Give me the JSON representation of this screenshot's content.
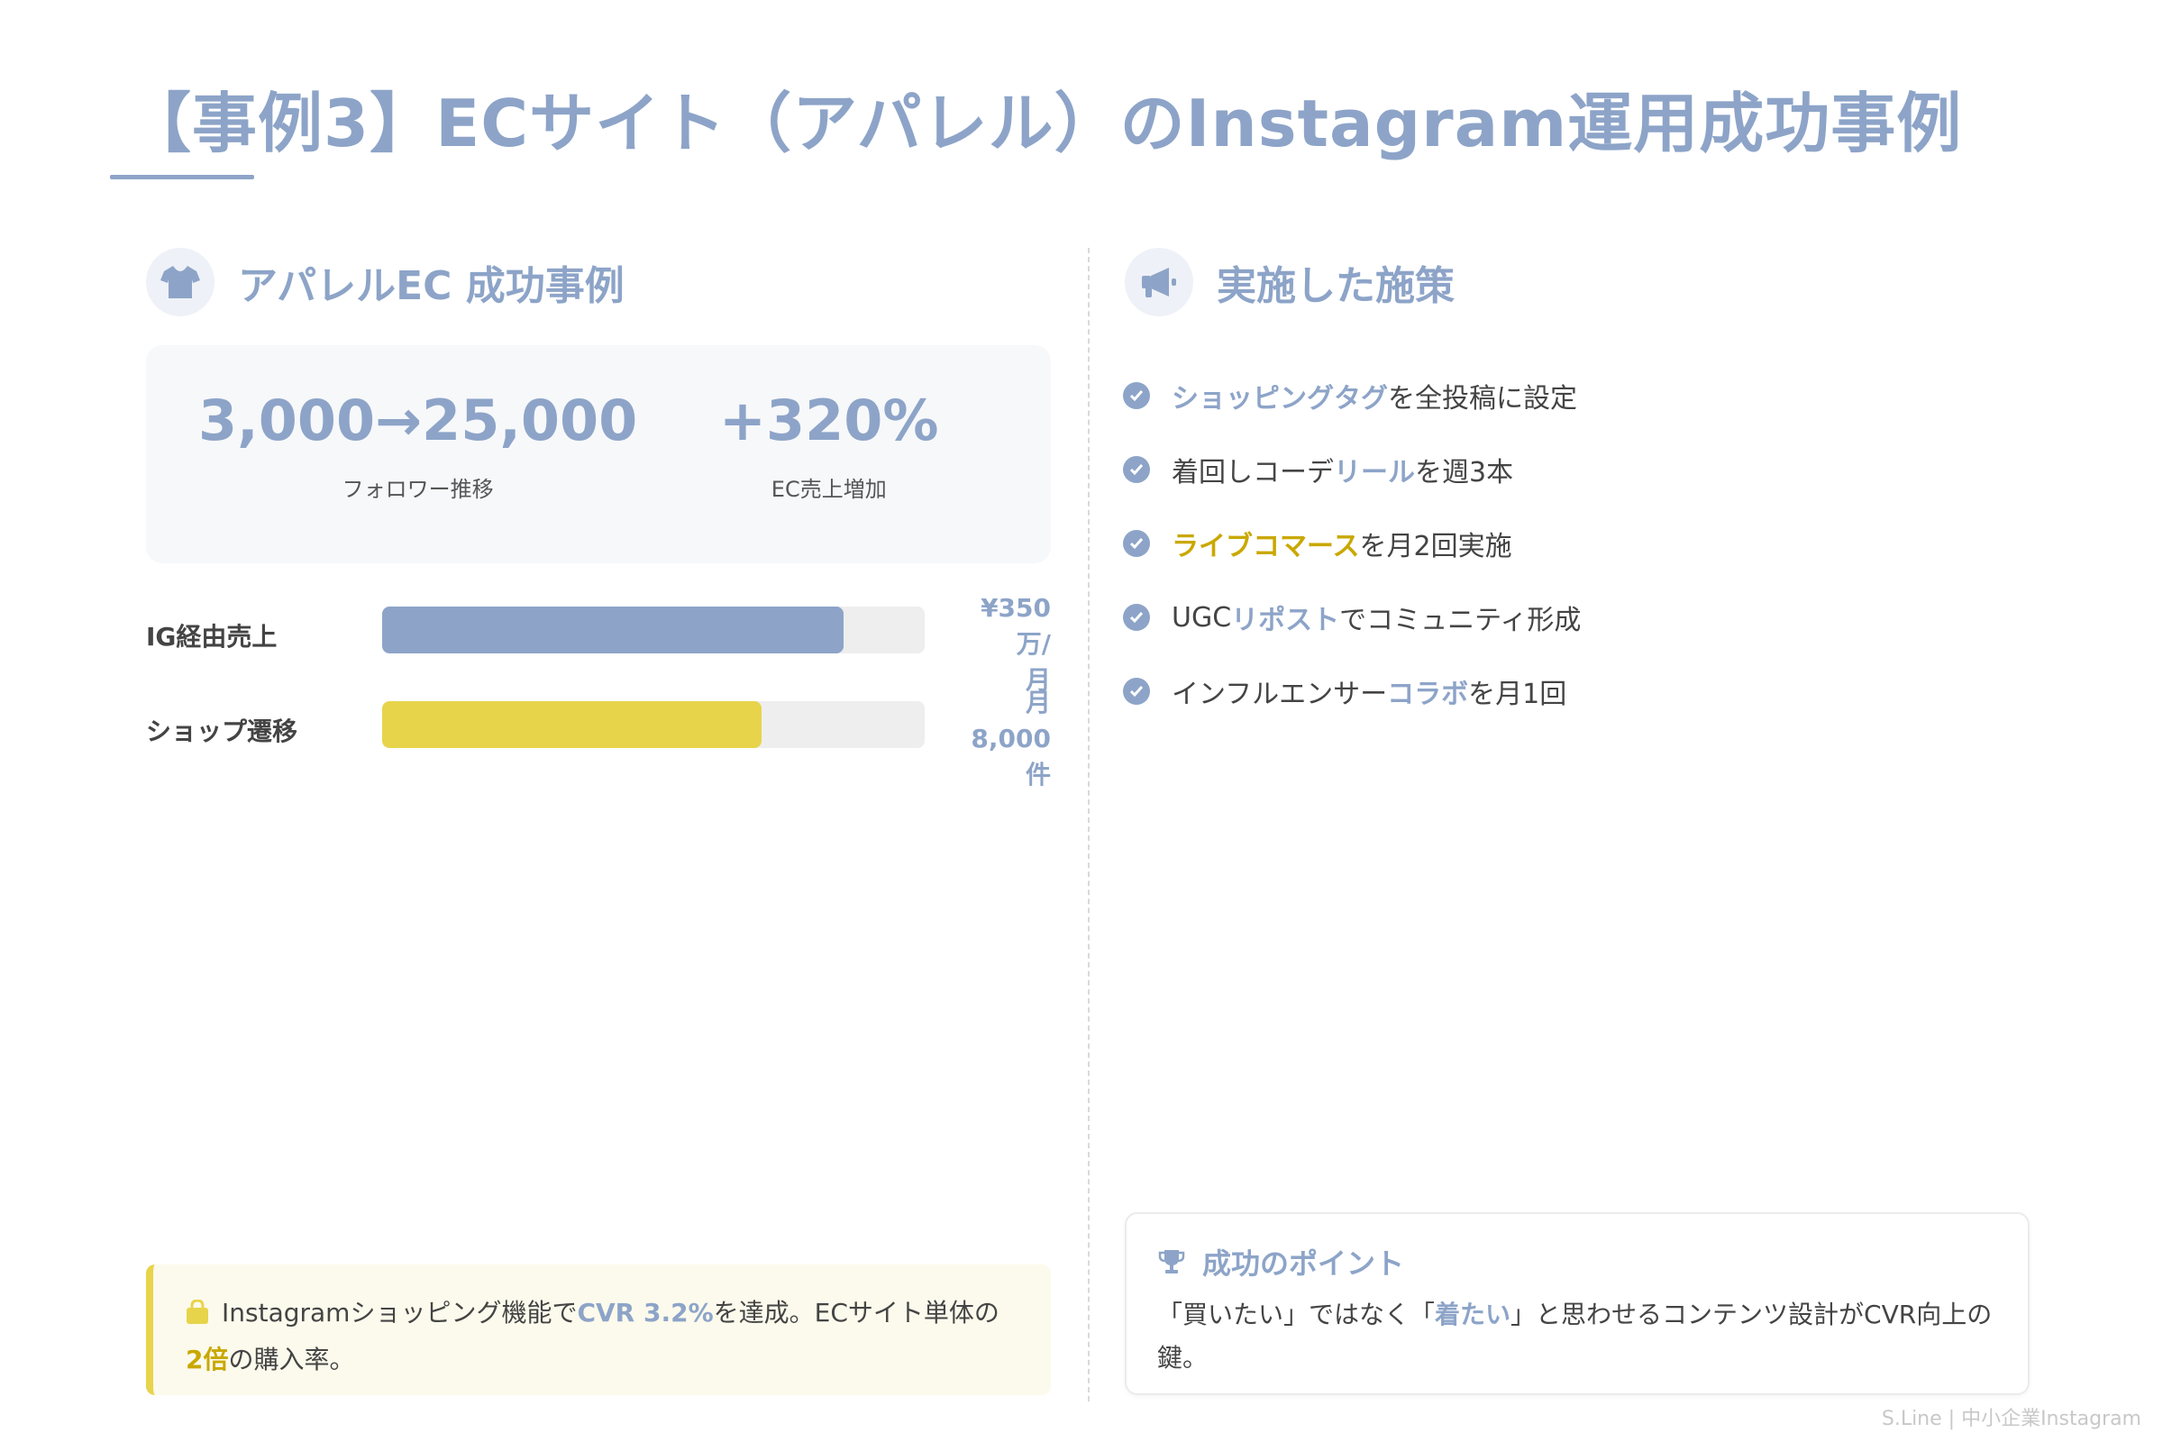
{
  "page": {
    "title": "【事例3】ECサイト（アパレル）のInstagram運用成功事例"
  },
  "left": {
    "heading": "アパレルEC 成功事例",
    "icon": "tshirt-icon",
    "stats": [
      {
        "value": "3,000→25,000",
        "label": "フォロワー推移"
      },
      {
        "value": "+320%",
        "label": "EC売上増加"
      }
    ],
    "bars": [
      {
        "label": "IG経由売上",
        "value_line1": "¥350万/",
        "value_line2": "月",
        "level": 0.85,
        "color": "#8da4c8"
      },
      {
        "label": "ショップ遷移",
        "value_line1": "月8,000",
        "value_line2": "件",
        "level": 0.7,
        "color": "#e7d44b"
      }
    ],
    "note": {
      "icon": "shopping-bag-icon",
      "text_1": "Instagramショッピング機能で",
      "highlight_1": "CVR 3.2%",
      "text_2": "を達成。ECサイト単体の",
      "highlight_2": "2倍",
      "text_3": "の購入率。"
    }
  },
  "right": {
    "heading": "実施した施策",
    "icon": "megaphone-icon",
    "measures": [
      {
        "pre": "",
        "highlight": "ショッピングタグ",
        "post": "を全投稿に設定",
        "color": "blue"
      },
      {
        "pre": "着回しコーデ",
        "highlight": "リール",
        "post": "を週3本",
        "color": "blue"
      },
      {
        "pre": "",
        "highlight": "ライブコマース",
        "post": "を月2回実施",
        "color": "yellow"
      },
      {
        "pre": "UGC",
        "highlight": "リポスト",
        "post": "でコミュニティ形成",
        "color": "blue"
      },
      {
        "pre": "インフルエンサー",
        "highlight": "コラボ",
        "post": "を月1回",
        "color": "blue"
      }
    ],
    "point": {
      "icon": "trophy-icon",
      "title": "成功のポイント",
      "text_1": "「買いたい」ではなく「",
      "highlight": "着たい",
      "text_2": "」と思わせるコンテンツ設計がCVR向上の鍵。"
    }
  },
  "footer": "S.Line | 中小企業Instagram",
  "colors": {
    "accent": "#8da4c8",
    "yellow": "#e7d44b",
    "yellow_text": "#c9a800"
  }
}
